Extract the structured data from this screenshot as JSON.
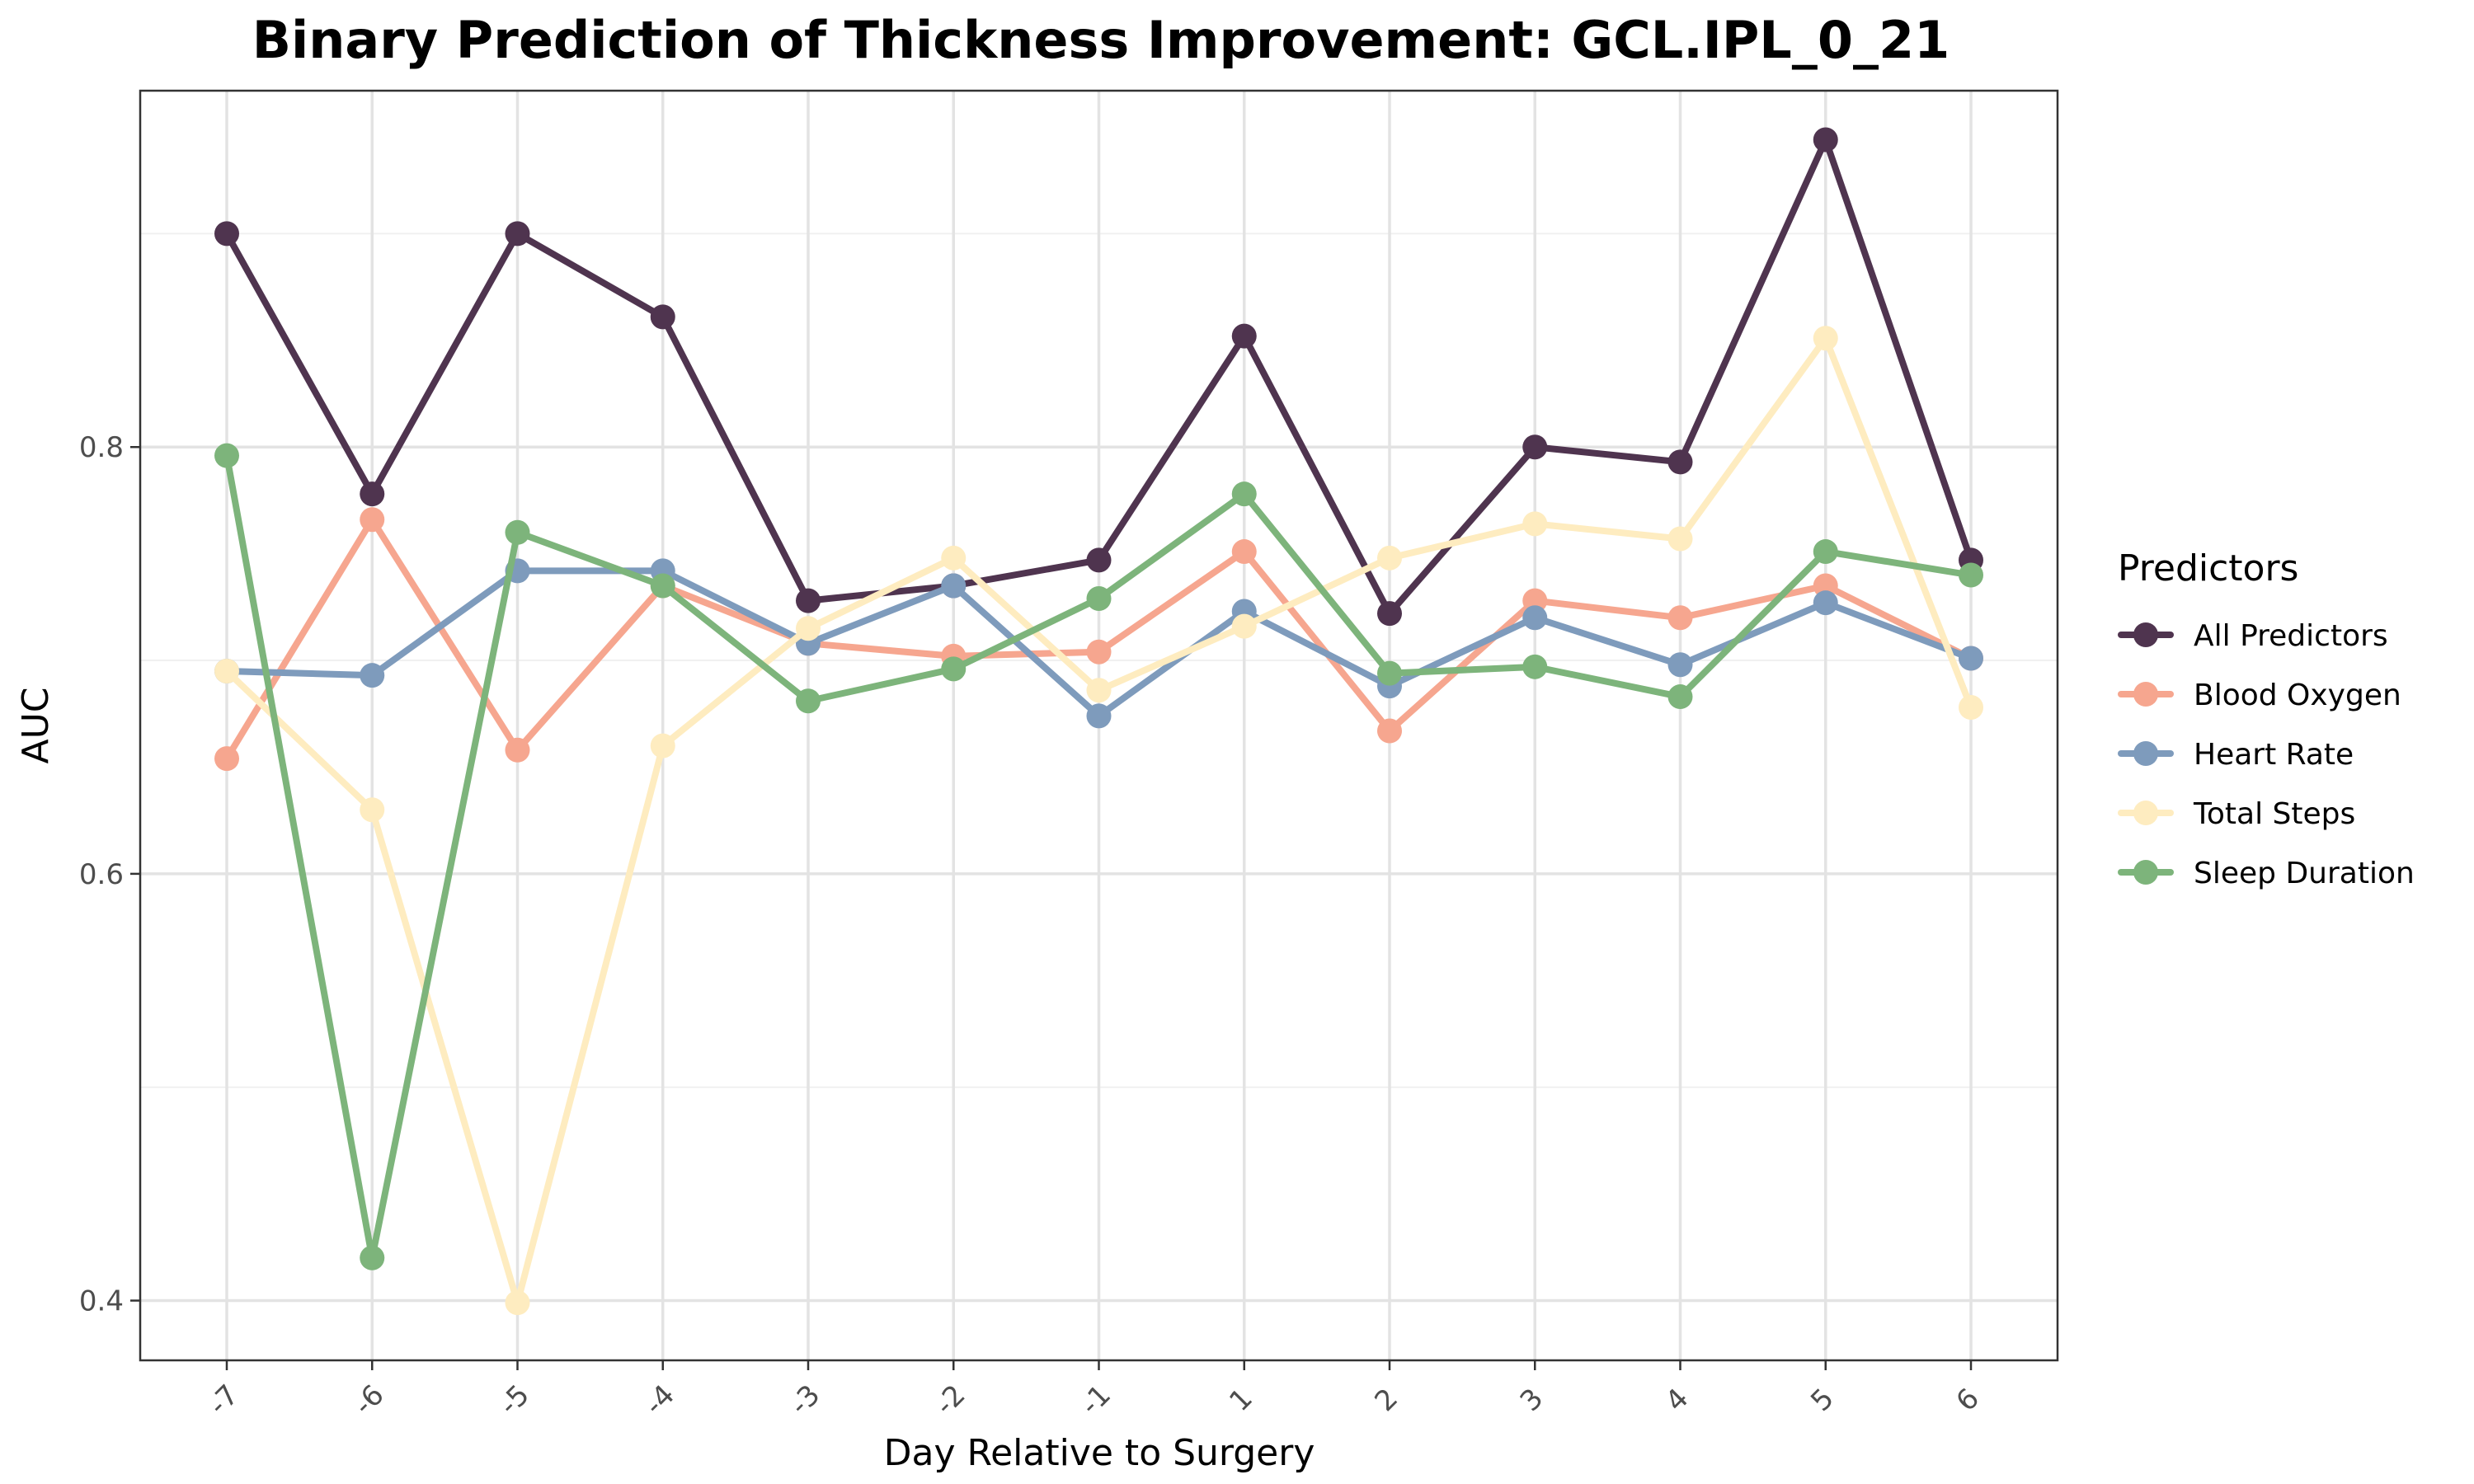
{
  "chart_data": {
    "type": "line",
    "title": "Binary Prediction of Thickness Improvement: GCL.IPL_0_21",
    "xlabel": "Day Relative to Surgery",
    "ylabel": "AUC",
    "categories": [
      "-7",
      "-6",
      "-5",
      "-4",
      "-3",
      "-2",
      "-1",
      "1",
      "2",
      "3",
      "4",
      "5",
      "6"
    ],
    "ylim": [
      0.372,
      0.967
    ],
    "yticks": [
      0.4,
      0.6,
      0.8
    ],
    "ytick_labels": [
      "0.4",
      "0.6",
      "0.8"
    ],
    "grid": true,
    "legend": {
      "title": "Predictors",
      "position": "right"
    },
    "series": [
      {
        "name": "All Predictors",
        "color": "#4f344f",
        "values": [
          0.9,
          0.778,
          0.9,
          0.861,
          0.728,
          0.735,
          0.747,
          0.852,
          0.722,
          0.8,
          0.793,
          0.944,
          0.747
        ]
      },
      {
        "name": "Blood Oxygen",
        "color": "#f6a68f",
        "values": [
          0.654,
          0.766,
          0.658,
          0.735,
          0.708,
          0.702,
          0.704,
          0.751,
          0.667,
          0.728,
          0.72,
          0.735,
          0.701
        ]
      },
      {
        "name": "Heart Rate",
        "color": "#7e9bbc",
        "values": [
          0.695,
          0.693,
          0.742,
          0.742,
          0.708,
          0.735,
          0.674,
          0.723,
          0.688,
          0.72,
          0.698,
          0.727,
          0.701
        ]
      },
      {
        "name": "Total Steps",
        "color": "#feecc0",
        "values": [
          0.695,
          0.63,
          0.399,
          0.66,
          0.715,
          0.748,
          0.686,
          0.716,
          0.748,
          0.764,
          0.757,
          0.851,
          0.678
        ]
      },
      {
        "name": "Sleep Duration",
        "color": "#7db47b",
        "values": [
          0.796,
          0.42,
          0.76,
          0.735,
          0.681,
          0.696,
          0.729,
          0.778,
          0.694,
          0.697,
          0.683,
          0.751,
          0.74
        ]
      }
    ]
  }
}
